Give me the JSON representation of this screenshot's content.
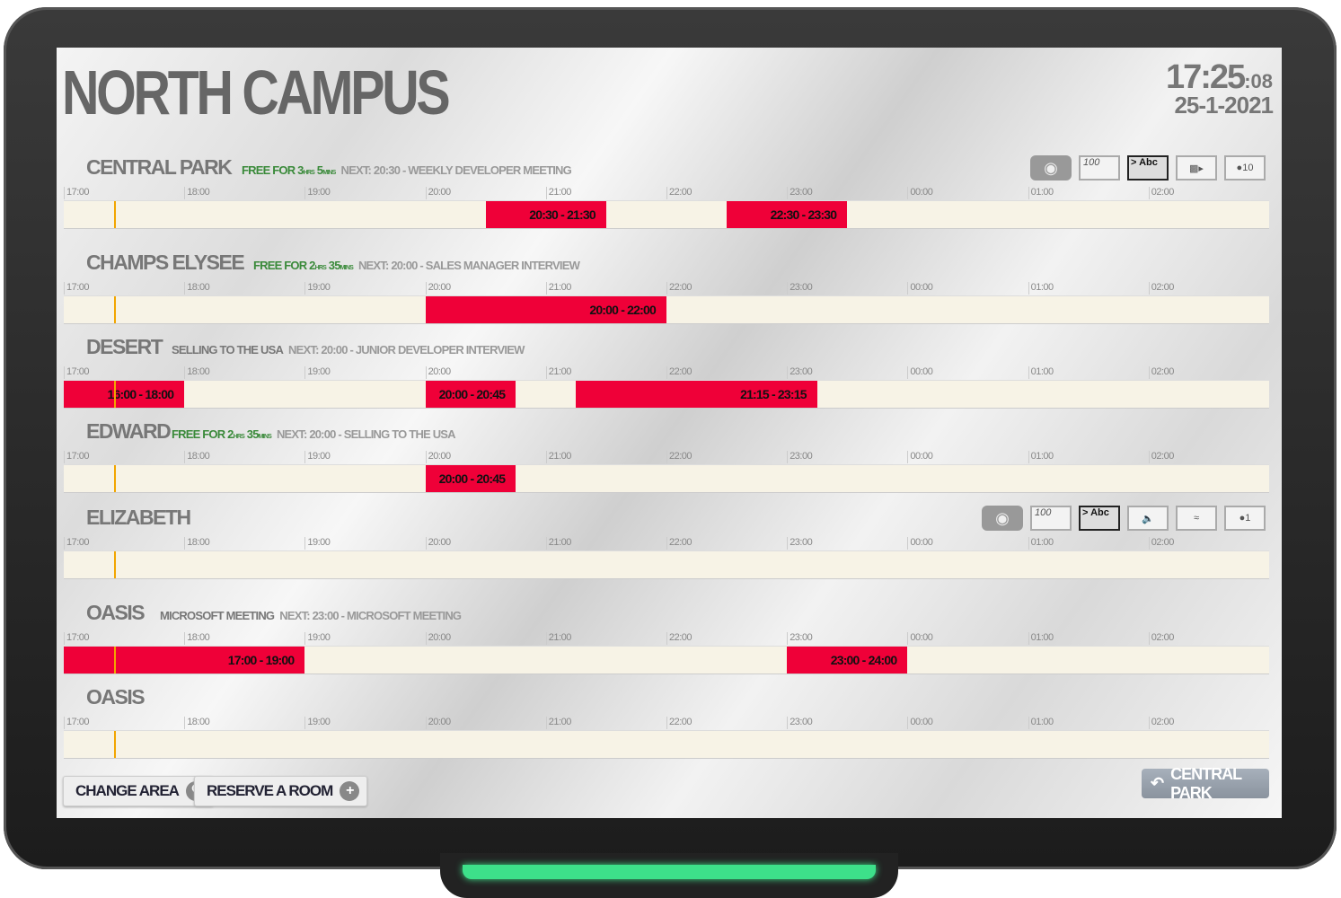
{
  "header": {
    "title": "NORTH CAMPUS",
    "time": "17:25",
    "seconds": ":08",
    "date": "25-1-2021"
  },
  "timeline": {
    "ticks": [
      "17:00",
      "18:00",
      "19:00",
      "20:00",
      "21:00",
      "22:00",
      "23:00",
      "00:00",
      "01:00",
      "02:00"
    ],
    "start_hour": 17,
    "hours": 10,
    "current_time": "17:25"
  },
  "colors": {
    "booking": "#ef0038",
    "free_text": "#3a8a3a",
    "now_line": "#f2a500",
    "bar_bg": "#f7f3e6"
  },
  "rooms": [
    {
      "name": "CENTRAL PARK",
      "status_type": "free",
      "status": "FREE FOR 3",
      "status_u1": "HRS",
      "status_n2": " 5",
      "status_u2": "MINS",
      "next": "NEXT: 20:30 - WEEKLY DEVELOPER MEETING",
      "amenities": [
        {
          "icon": "projector-icon",
          "label": ""
        },
        {
          "icon": "whiteboard-icon",
          "label": "100"
        },
        {
          "icon": "display-icon",
          "label": "> Abc"
        },
        {
          "icon": "video-camera-icon",
          "label": ""
        },
        {
          "icon": "capacity-icon",
          "label": "10"
        }
      ],
      "bookings": [
        {
          "start": "20:30",
          "end": "21:30",
          "label": "20:30 - 21:30"
        },
        {
          "start": "22:30",
          "end": "23:30",
          "label": "22:30 - 23:30"
        }
      ]
    },
    {
      "name": "CHAMPS ELYSEE",
      "status_type": "free",
      "status": "FREE FOR 2",
      "status_u1": "HRS",
      "status_n2": " 35",
      "status_u2": "MINS",
      "next": "NEXT: 20:00 - SALES MANAGER INTERVIEW",
      "amenities": [],
      "bookings": [
        {
          "start": "20:00",
          "end": "22:00",
          "label": "20:00 - 22:00"
        }
      ]
    },
    {
      "name": "DESERT",
      "status_type": "busy",
      "status": "SELLING TO THE USA",
      "next": "NEXT: 20:00 - JUNIOR DEVELOPER INTERVIEW",
      "amenities": [],
      "bookings": [
        {
          "start": "16:00",
          "end": "18:00",
          "label": "16:00 - 18:00"
        },
        {
          "start": "20:00",
          "end": "20:45",
          "label": "20:00 - 20:45"
        },
        {
          "start": "21:15",
          "end": "23:15",
          "label": "21:15 - 23:15"
        }
      ]
    },
    {
      "name": "EDWARD",
      "status_type": "free",
      "status": "FREE FOR 2",
      "status_u1": "HRS",
      "status_n2": " 35",
      "status_u2": "MINS",
      "next": "NEXT: 20:00 - SELLING TO THE USA",
      "amenities": [],
      "bookings": [
        {
          "start": "20:00",
          "end": "20:45",
          "label": "20:00 - 20:45"
        }
      ]
    },
    {
      "name": "ELIZABETH",
      "status_type": "none",
      "status": "",
      "next": "",
      "amenities": [
        {
          "icon": "projector-icon",
          "label": ""
        },
        {
          "icon": "whiteboard-icon",
          "label": "100"
        },
        {
          "icon": "display-icon",
          "label": "> Abc"
        },
        {
          "icon": "speaker-icon",
          "label": ""
        },
        {
          "icon": "wifi-icon",
          "label": ""
        },
        {
          "icon": "capacity-icon",
          "label": "1"
        }
      ],
      "bookings": []
    },
    {
      "name": "OASIS",
      "status_type": "busy",
      "status": "MICROSOFT MEETING",
      "next": "NEXT: 23:00 - MICROSOFT MEETING",
      "amenities": [],
      "bookings": [
        {
          "start": "17:00",
          "end": "19:00",
          "label": "17:00 - 19:00"
        },
        {
          "start": "23:00",
          "end": "24:00",
          "label": "23:00 - 24:00"
        }
      ]
    },
    {
      "name": "OASIS",
      "status_type": "none",
      "status": "",
      "next": "",
      "amenities": [],
      "bookings": []
    }
  ],
  "footer": {
    "change_area": "CHANGE AREA",
    "reserve_room": "RESERVE A ROOM",
    "back_label": "CENTRAL PARK"
  }
}
